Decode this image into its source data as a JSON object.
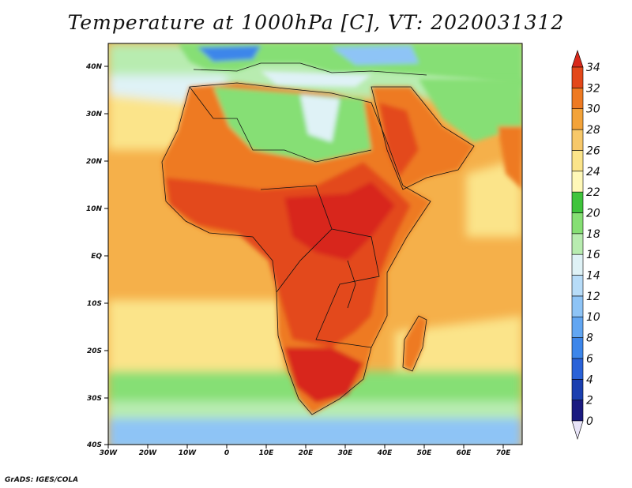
{
  "title": "Temperature at 1000hPa [C], VT: 2020031312",
  "credit": "GrADS: IGES/COLA",
  "axes": {
    "lon_labels": [
      "30W",
      "20W",
      "10W",
      "0",
      "10E",
      "20E",
      "30E",
      "40E",
      "50E",
      "60E",
      "70E"
    ],
    "lat_labels": [
      "40N",
      "30N",
      "20N",
      "10N",
      "EQ",
      "10S",
      "20S",
      "30S",
      "40S"
    ]
  },
  "colorbar": {
    "levels": [
      "0",
      "2",
      "4",
      "6",
      "8",
      "10",
      "12",
      "14",
      "16",
      "18",
      "20",
      "22",
      "24",
      "26",
      "28",
      "30",
      "32",
      "34"
    ],
    "colors": [
      "#1a1a80",
      "#1b3fb0",
      "#2a62d8",
      "#3d86ea",
      "#62a6f2",
      "#8ec4f6",
      "#b7dcf8",
      "#dff2f6",
      "#b8ecb0",
      "#86df74",
      "#3fc43c",
      "#fff8b8",
      "#fbe48a",
      "#f7c86a",
      "#f3a33a",
      "#ee7a22",
      "#e3481a",
      "#d8281a"
    ]
  },
  "map_colors": {
    "ocean_warm": "#f5b04a",
    "ocean_mid": "#fbe48a",
    "ocean_cool": "#b8ecb0",
    "ocean_cold": "#8ec4f6",
    "land_hot": "#e3481a",
    "land_hottest": "#d8281a",
    "land_warm": "#ee7a22",
    "land_mild": "#86df74",
    "land_cool": "#dff2f6"
  }
}
